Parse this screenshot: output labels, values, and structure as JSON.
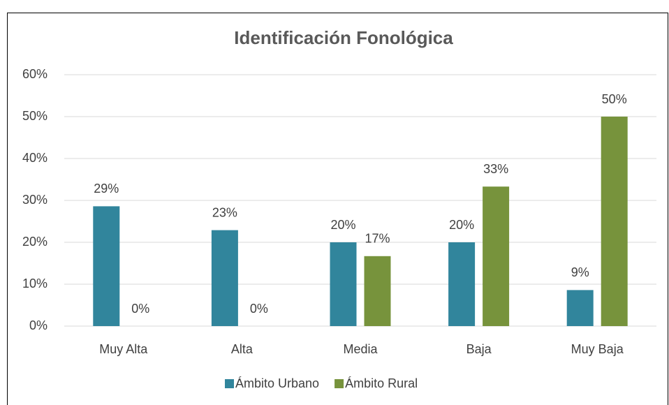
{
  "chart_data": {
    "type": "bar",
    "title": "Identificación Fonológica",
    "categories": [
      "Muy Alta",
      "Alta",
      "Media",
      "Baja",
      "Muy Baja"
    ],
    "series": [
      {
        "name": "Ámbito Urbano",
        "color": "#31859c",
        "values": [
          28.6,
          22.9,
          20,
          20,
          8.6
        ],
        "value_labels": [
          "29%",
          "23%",
          "20%",
          "20%",
          "9%"
        ]
      },
      {
        "name": "Ámbito Rural",
        "color": "#77933c",
        "values": [
          0,
          0,
          16.7,
          33.3,
          50
        ],
        "value_labels": [
          "0%",
          "0%",
          "17%",
          "33%",
          "50%"
        ]
      }
    ],
    "ylim": [
      0,
      60
    ],
    "yticks": [
      {
        "value": 0,
        "label": "0%"
      },
      {
        "value": 10,
        "label": "10%"
      },
      {
        "value": 20,
        "label": "20%"
      },
      {
        "value": 30,
        "label": "30%"
      },
      {
        "value": 40,
        "label": "40%"
      },
      {
        "value": 50,
        "label": "50%"
      },
      {
        "value": 60,
        "label": "60%"
      }
    ],
    "grid": true,
    "legend": "bottom"
  }
}
